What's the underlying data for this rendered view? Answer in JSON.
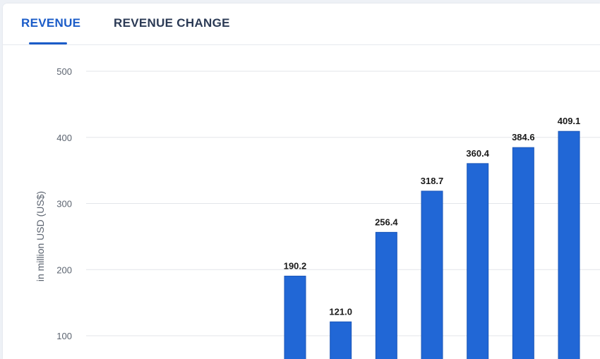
{
  "tabs": [
    {
      "label": "REVENUE",
      "active": true
    },
    {
      "label": "REVENUE CHANGE",
      "active": false
    }
  ],
  "colors": {
    "bar": "#2167d6",
    "bar_border": "#1a56b8",
    "grid": "#e3e6ea",
    "active_tab": "#1b5cc8"
  },
  "chart_data": {
    "type": "bar",
    "title": "",
    "xlabel": "",
    "ylabel": "in million USD (US$)",
    "ylim": [
      0,
      500
    ],
    "yticks": [
      100,
      200,
      300,
      400,
      500
    ],
    "grid": true,
    "values": [
      190.2,
      121.0,
      256.4,
      318.7,
      360.4,
      384.6,
      409.1
    ],
    "value_labels": [
      "190.2",
      "121.0",
      "256.4",
      "318.7",
      "360.4",
      "384.6",
      "409.1"
    ]
  }
}
